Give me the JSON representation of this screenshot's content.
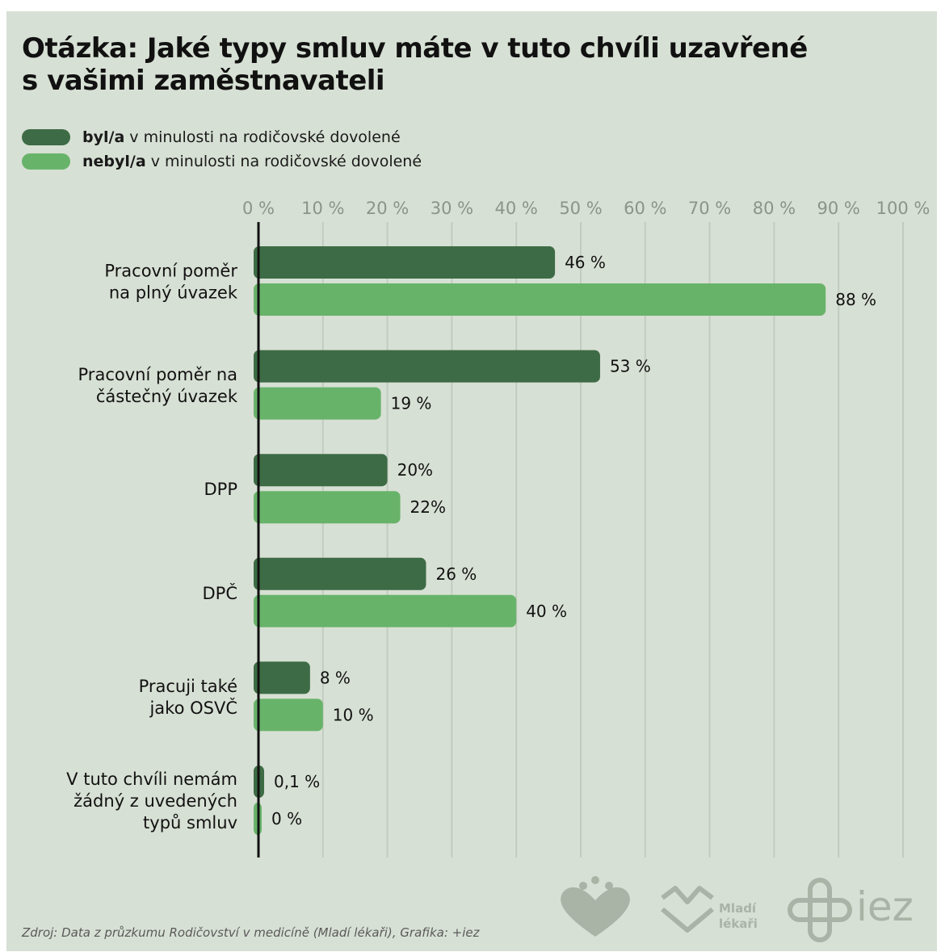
{
  "title_lines": [
    "Otázka: Jaké typy smluv máte v tuto chvíli uzavřené",
    "s vašimi zaměstnavateli"
  ],
  "legend": [
    {
      "bold": "byl/a",
      "rest": " v minulosti na rodičovské dovolené",
      "color": "#3d6b45"
    },
    {
      "bold": "nebyl/a",
      "rest": " v minulosti na rodičovské dovolené",
      "color": "#68b36a"
    }
  ],
  "source": "Zdroj: Data z průzkumu Rodičovství v medicíně (Mladí lékaři), Grafika: +iez",
  "logos": {
    "mladi_lekari_line1": "Mladí",
    "mladi_lekari_line2": "lékaři",
    "iez": "iez"
  },
  "chart_data": {
    "type": "bar",
    "orientation": "horizontal",
    "xlim": [
      0,
      100
    ],
    "ticks": [
      "0 %",
      "10 %",
      "20 %",
      "30 %",
      "40 %",
      "50 %",
      "60 %",
      "70 %",
      "80 %",
      "90 %",
      "100 %"
    ],
    "grid": true,
    "categories": [
      [
        "Pracovní poměr",
        "na plný úvazek"
      ],
      [
        "Pracovní poměr na",
        "částečný úvazek"
      ],
      [
        "DPP"
      ],
      [
        "DPČ"
      ],
      [
        "Pracuji také",
        "jako OSVČ"
      ],
      [
        "V tuto chvíli nemám",
        "žádný z uvedených",
        "typů smluv"
      ]
    ],
    "series": [
      {
        "name": "byl/a v minulosti na rodičovské dovolené",
        "color": "#3d6b45",
        "values": [
          46,
          53,
          20,
          26,
          8,
          0.1
        ],
        "labels": [
          "46 %",
          "53 %",
          "20%",
          "26 %",
          "8 %",
          "0,1 %"
        ]
      },
      {
        "name": "nebyl/a v minulosti na rodičovské dovolené",
        "color": "#68b36a",
        "values": [
          88,
          19,
          22,
          40,
          10,
          0
        ],
        "labels": [
          "88 %",
          "19 %",
          "22%",
          "40 %",
          "10 %",
          "0 %"
        ]
      }
    ]
  }
}
